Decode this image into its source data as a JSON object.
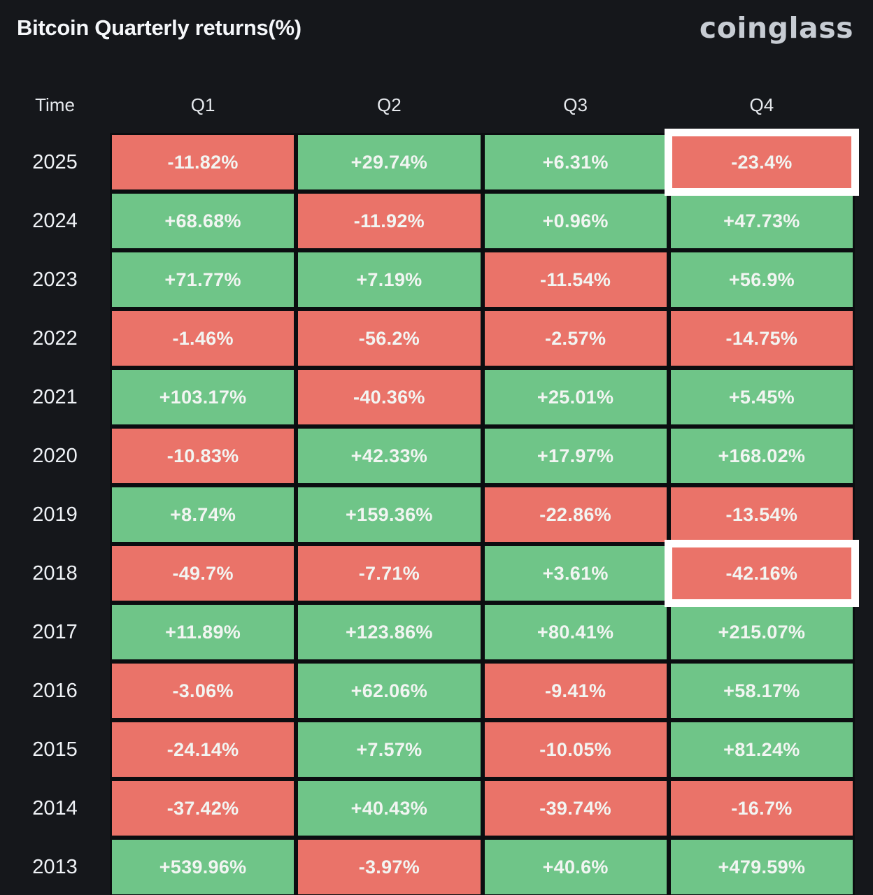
{
  "header": {
    "title": "Bitcoin Quarterly returns(%)",
    "logo": "coinglass"
  },
  "colors": {
    "background": "#15171b",
    "positive": "#6fc588",
    "negative": "#ea7369",
    "cell_text": "#f2f5f2",
    "highlight_border": "#ffffff"
  },
  "chart_data": {
    "type": "heatmap",
    "title": "Bitcoin Quarterly returns(%)",
    "columns": [
      "Time",
      "Q1",
      "Q2",
      "Q3",
      "Q4"
    ],
    "rows": [
      {
        "year": "2025",
        "values": [
          "-11.82%",
          "+29.74%",
          "+6.31%",
          "-23.4%"
        ]
      },
      {
        "year": "2024",
        "values": [
          "+68.68%",
          "-11.92%",
          "+0.96%",
          "+47.73%"
        ]
      },
      {
        "year": "2023",
        "values": [
          "+71.77%",
          "+7.19%",
          "-11.54%",
          "+56.9%"
        ]
      },
      {
        "year": "2022",
        "values": [
          "-1.46%",
          "-56.2%",
          "-2.57%",
          "-14.75%"
        ]
      },
      {
        "year": "2021",
        "values": [
          "+103.17%",
          "-40.36%",
          "+25.01%",
          "+5.45%"
        ]
      },
      {
        "year": "2020",
        "values": [
          "-10.83%",
          "+42.33%",
          "+17.97%",
          "+168.02%"
        ]
      },
      {
        "year": "2019",
        "values": [
          "+8.74%",
          "+159.36%",
          "-22.86%",
          "-13.54%"
        ]
      },
      {
        "year": "2018",
        "values": [
          "-49.7%",
          "-7.71%",
          "+3.61%",
          "-42.16%"
        ]
      },
      {
        "year": "2017",
        "values": [
          "+11.89%",
          "+123.86%",
          "+80.41%",
          "+215.07%"
        ]
      },
      {
        "year": "2016",
        "values": [
          "-3.06%",
          "+62.06%",
          "-9.41%",
          "+58.17%"
        ]
      },
      {
        "year": "2015",
        "values": [
          "-24.14%",
          "+7.57%",
          "-10.05%",
          "+81.24%"
        ]
      },
      {
        "year": "2014",
        "values": [
          "-37.42%",
          "+40.43%",
          "-39.74%",
          "-16.7%"
        ]
      },
      {
        "year": "2013",
        "values": [
          "+539.96%",
          "-3.97%",
          "+40.6%",
          "+479.59%"
        ]
      }
    ],
    "highlighted_cells": [
      {
        "year": "2025",
        "quarter": "Q4"
      },
      {
        "year": "2018",
        "quarter": "Q4"
      }
    ],
    "color_rule": "positive values green, negative values red",
    "legend_position": "none",
    "grid": false
  }
}
